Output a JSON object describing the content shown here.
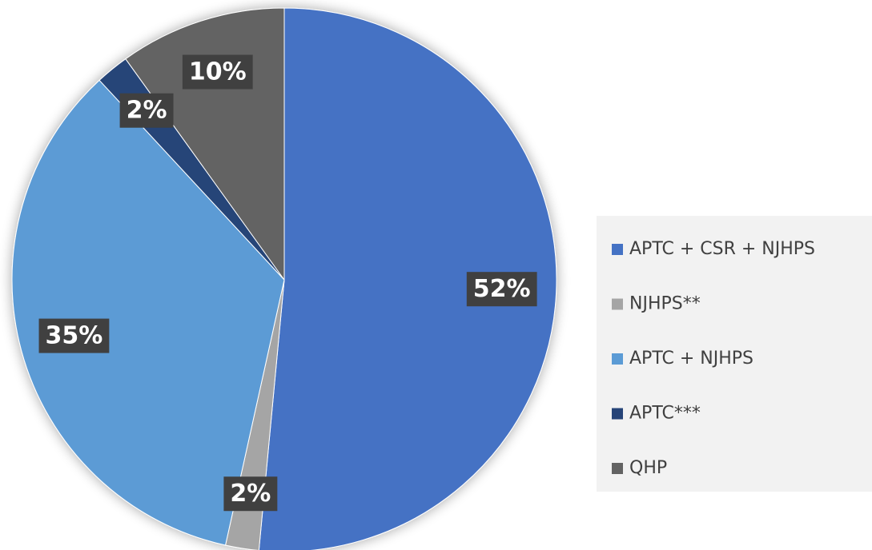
{
  "chart_data": {
    "type": "pie",
    "categories": [
      "APTC + CSR + NJHPS",
      "NJHPS**",
      "APTC + NJHPS",
      "APTC***",
      "QHP"
    ],
    "values": [
      52,
      2,
      35,
      2,
      10
    ],
    "value_labels": [
      "52%",
      "2%",
      "35%",
      "2%",
      "10%"
    ],
    "colors": [
      "#4472c4",
      "#a5a5a5",
      "#5b9bd5",
      "#264478",
      "#636363"
    ],
    "legend": "right"
  }
}
